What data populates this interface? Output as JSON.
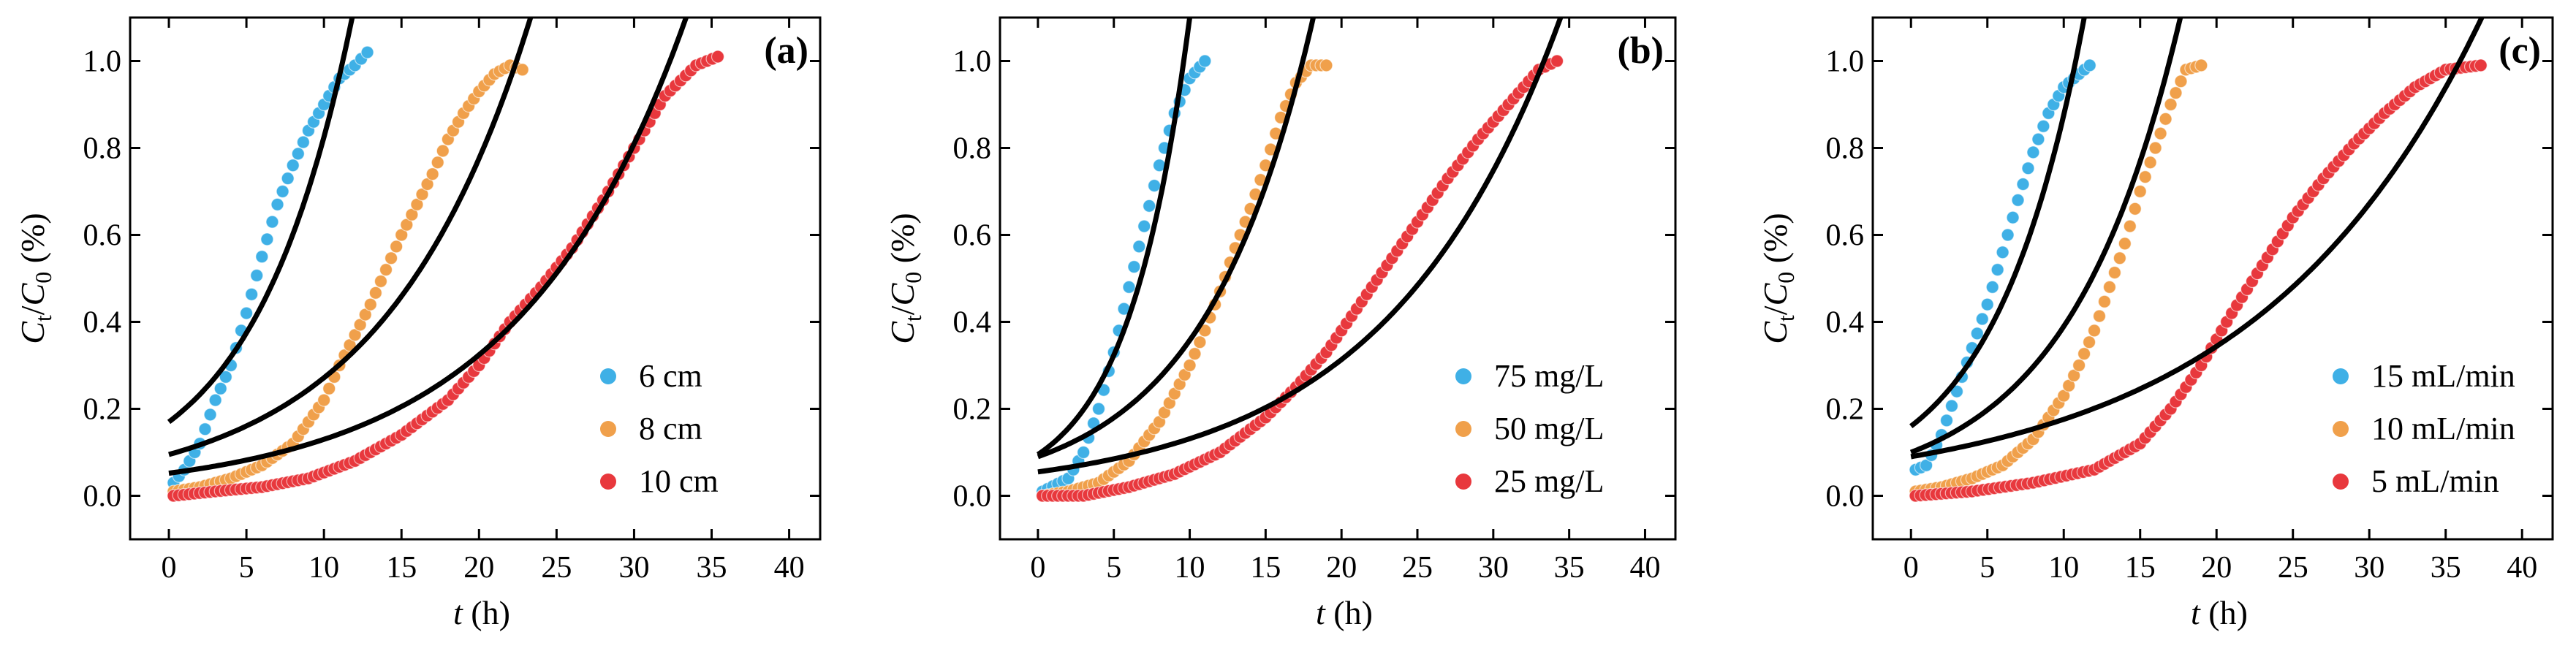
{
  "chart_data": [
    {
      "type": "scatter",
      "panel_label": "(a)",
      "xlabel_var": "t",
      "xlabel_unit": " (h)",
      "ylabel_parts": [
        "C",
        "t",
        "/",
        "C",
        "0",
        " (%)"
      ],
      "xlim": [
        -2.5,
        42
      ],
      "ylim": [
        -0.1,
        1.1
      ],
      "xticks": [
        0,
        5,
        10,
        15,
        20,
        25,
        30,
        35,
        40
      ],
      "xtick_labels": [
        "0",
        "5",
        "10",
        "15",
        "20",
        "25",
        "30",
        "35",
        "40"
      ],
      "yticks": [
        0.0,
        0.2,
        0.4,
        0.6,
        0.8,
        1.0
      ],
      "ytick_labels": [
        "0.0",
        "0.2",
        "0.4",
        "0.6",
        "0.8",
        "1.0"
      ],
      "legend_position": "lower-right",
      "series": [
        {
          "name": "6 cm",
          "color": "#3fb0e6",
          "fit": {
            "a": 0.17,
            "b": 0.158
          },
          "points": [
            [
              0.3,
              0.03
            ],
            [
              1,
              0.06
            ],
            [
              2,
              0.12
            ],
            [
              3,
              0.22
            ],
            [
              4,
              0.3
            ],
            [
              5,
              0.42
            ],
            [
              6,
              0.55
            ],
            [
              7,
              0.67
            ],
            [
              8,
              0.76
            ],
            [
              9,
              0.84
            ],
            [
              10,
              0.9
            ],
            [
              11,
              0.96
            ],
            [
              12,
              0.99
            ],
            [
              12.8,
              1.02
            ]
          ]
        },
        {
          "name": "8 cm",
          "color": "#f0a04b",
          "fit": {
            "a": 0.095,
            "b": 0.105
          },
          "points": [
            [
              0.3,
              0.01
            ],
            [
              2,
              0.02
            ],
            [
              4,
              0.04
            ],
            [
              6,
              0.07
            ],
            [
              8,
              0.12
            ],
            [
              10,
              0.22
            ],
            [
              11,
              0.3
            ],
            [
              12,
              0.37
            ],
            [
              13,
              0.44
            ],
            [
              14,
              0.52
            ],
            [
              15,
              0.6
            ],
            [
              16,
              0.67
            ],
            [
              17,
              0.74
            ],
            [
              18,
              0.82
            ],
            [
              19,
              0.88
            ],
            [
              20,
              0.93
            ],
            [
              21,
              0.97
            ],
            [
              22,
              0.99
            ],
            [
              22.8,
              0.98
            ]
          ]
        },
        {
          "name": "10 cm",
          "color": "#e8383d",
          "fit": {
            "a": 0.052,
            "b": 0.0915
          },
          "points": [
            [
              0.3,
              0.0
            ],
            [
              3,
              0.01
            ],
            [
              6,
              0.02
            ],
            [
              9,
              0.04
            ],
            [
              12,
              0.08
            ],
            [
              15,
              0.14
            ],
            [
              18,
              0.22
            ],
            [
              20,
              0.3
            ],
            [
              22,
              0.4
            ],
            [
              24,
              0.48
            ],
            [
              26,
              0.57
            ],
            [
              28,
              0.68
            ],
            [
              30,
              0.8
            ],
            [
              32,
              0.92
            ],
            [
              34,
              0.99
            ],
            [
              35.4,
              1.01
            ]
          ]
        }
      ]
    },
    {
      "type": "scatter",
      "panel_label": "(b)",
      "xlabel_var": "t",
      "xlabel_unit": " (h)",
      "ylabel_parts": [
        "C",
        "t",
        "/",
        "C",
        "0",
        " (%)"
      ],
      "xlim": [
        -2.5,
        42
      ],
      "ylim": [
        -0.1,
        1.1
      ],
      "xticks": [
        0,
        5,
        10,
        15,
        20,
        25,
        30,
        35,
        40
      ],
      "xtick_labels": [
        "0",
        "5",
        "10",
        "15",
        "20",
        "25",
        "30",
        "35",
        "40"
      ],
      "yticks": [
        0.0,
        0.2,
        0.4,
        0.6,
        0.8,
        1.0
      ],
      "ytick_labels": [
        "0.0",
        "0.2",
        "0.4",
        "0.6",
        "0.8",
        "1.0"
      ],
      "legend_position": "lower-right",
      "series": [
        {
          "name": "75 mg/L",
          "color": "#3fb0e6",
          "fit": {
            "a": 0.095,
            "b": 0.245
          },
          "points": [
            [
              0.3,
              0.01
            ],
            [
              2,
              0.04
            ],
            [
              3,
              0.1
            ],
            [
              4,
              0.2
            ],
            [
              5,
              0.33
            ],
            [
              6,
              0.48
            ],
            [
              7,
              0.62
            ],
            [
              8,
              0.76
            ],
            [
              9,
              0.88
            ],
            [
              10,
              0.96
            ],
            [
              11,
              1.0
            ]
          ]
        },
        {
          "name": "50 mg/L",
          "color": "#f0a04b",
          "fit": {
            "a": 0.09,
            "b": 0.138
          },
          "points": [
            [
              0.3,
              0.0
            ],
            [
              2,
              0.01
            ],
            [
              4,
              0.03
            ],
            [
              6,
              0.08
            ],
            [
              8,
              0.17
            ],
            [
              10,
              0.3
            ],
            [
              11,
              0.38
            ],
            [
              12,
              0.47
            ],
            [
              13,
              0.57
            ],
            [
              14,
              0.66
            ],
            [
              15,
              0.76
            ],
            [
              16,
              0.87
            ],
            [
              17,
              0.95
            ],
            [
              18,
              0.99
            ],
            [
              19,
              0.99
            ]
          ]
        },
        {
          "name": "25 mg/L",
          "color": "#e8383d",
          "fit": {
            "a": 0.055,
            "b": 0.087
          },
          "points": [
            [
              0.3,
              0.0
            ],
            [
              3,
              0.0
            ],
            [
              6,
              0.02
            ],
            [
              9,
              0.05
            ],
            [
              12,
              0.1
            ],
            [
              15,
              0.18
            ],
            [
              17,
              0.25
            ],
            [
              19,
              0.33
            ],
            [
              21,
              0.43
            ],
            [
              23,
              0.53
            ],
            [
              25,
              0.63
            ],
            [
              27,
              0.73
            ],
            [
              29,
              0.82
            ],
            [
              31,
              0.9
            ],
            [
              33,
              0.98
            ],
            [
              34.2,
              1.0
            ]
          ]
        }
      ]
    },
    {
      "type": "scatter",
      "panel_label": "(c)",
      "xlabel_var": "t",
      "xlabel_unit": " (h)",
      "ylabel_parts": [
        "C",
        "t",
        "/",
        "C",
        "0",
        " (%)"
      ],
      "xlim": [
        -2.5,
        42
      ],
      "ylim": [
        -0.1,
        1.1
      ],
      "xticks": [
        0,
        5,
        10,
        15,
        20,
        25,
        30,
        35,
        40
      ],
      "xtick_labels": [
        "0",
        "5",
        "10",
        "15",
        "20",
        "25",
        "30",
        "35",
        "40"
      ],
      "yticks": [
        0.0,
        0.2,
        0.4,
        0.6,
        0.8,
        1.0
      ],
      "ytick_labels": [
        "0.0",
        "0.2",
        "0.4",
        "0.6",
        "0.8",
        "1.0"
      ],
      "legend_position": "lower-right",
      "series": [
        {
          "name": "15 mL/min",
          "color": "#3fb0e6",
          "fit": {
            "a": 0.16,
            "b": 0.17
          },
          "points": [
            [
              0.3,
              0.06
            ],
            [
              1,
              0.07
            ],
            [
              2,
              0.14
            ],
            [
              3,
              0.24
            ],
            [
              4,
              0.34
            ],
            [
              5,
              0.44
            ],
            [
              6,
              0.56
            ],
            [
              7,
              0.68
            ],
            [
              8,
              0.79
            ],
            [
              9,
              0.88
            ],
            [
              10,
              0.94
            ],
            [
              11,
              0.97
            ],
            [
              11.7,
              0.99
            ]
          ]
        },
        {
          "name": "10 mL/min",
          "color": "#f0a04b",
          "fit": {
            "a": 0.1,
            "b": 0.136
          },
          "points": [
            [
              0.3,
              0.01
            ],
            [
              2,
              0.02
            ],
            [
              4,
              0.04
            ],
            [
              6,
              0.07
            ],
            [
              8,
              0.13
            ],
            [
              10,
              0.23
            ],
            [
              11,
              0.3
            ],
            [
              12,
              0.38
            ],
            [
              13,
              0.48
            ],
            [
              14,
              0.58
            ],
            [
              15,
              0.7
            ],
            [
              16,
              0.8
            ],
            [
              17,
              0.9
            ],
            [
              18,
              0.98
            ],
            [
              19,
              0.99
            ]
          ]
        },
        {
          "name": "5 mL/min",
          "color": "#e8383d",
          "fit": {
            "a": 0.09,
            "b": 0.067
          },
          "points": [
            [
              0.3,
              0.0
            ],
            [
              4,
              0.01
            ],
            [
              8,
              0.03
            ],
            [
              12,
              0.06
            ],
            [
              15,
              0.12
            ],
            [
              17,
              0.2
            ],
            [
              19,
              0.3
            ],
            [
              21,
              0.42
            ],
            [
              23,
              0.53
            ],
            [
              25,
              0.64
            ],
            [
              27,
              0.73
            ],
            [
              29,
              0.81
            ],
            [
              31,
              0.88
            ],
            [
              33,
              0.94
            ],
            [
              35,
              0.98
            ],
            [
              37.3,
              0.99
            ]
          ]
        }
      ]
    }
  ]
}
